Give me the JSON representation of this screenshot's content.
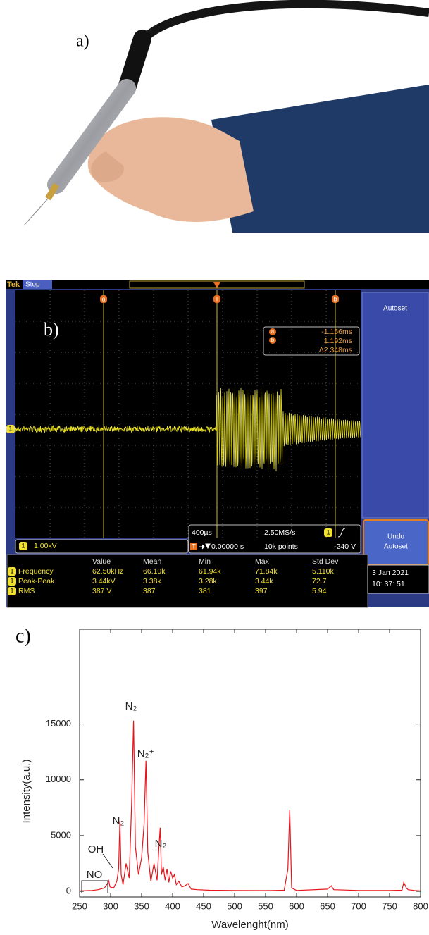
{
  "photo": {
    "label": "a)"
  },
  "oscilloscope": {
    "label": "b)",
    "brand": "Tek",
    "state": "Stop",
    "cursor_a": "a",
    "cursor_b": "b",
    "trigger": "T",
    "channel": "1",
    "readouts": [
      "-1.156ms",
      "1.192ms",
      "Δ2.348ms"
    ],
    "autoset": "Autoset",
    "undo_autoset": [
      "Undo",
      "Autoset"
    ],
    "scale": "1.00kV",
    "timebase": "400µs",
    "sample_rate": "2.50MS/s",
    "trigger_position": "0.00000 s",
    "record_length": "10k points",
    "trigger_level": "-240 V",
    "date": "3 Jan   2021",
    "time": "10: 37: 51",
    "table": {
      "header": [
        "Value",
        "Mean",
        "Min",
        "Max",
        "Std Dev"
      ],
      "rows": [
        [
          "Frequency",
          "62.50kHz",
          "66.10k",
          "61.94k",
          "71.84k",
          "5.110k"
        ],
        [
          "Peak-Peak",
          "3.44kV",
          "3.38k",
          "3.28k",
          "3.44k",
          "72.7"
        ],
        [
          "RMS",
          "387 V",
          "387",
          "381",
          "397",
          "5.94"
        ]
      ]
    }
  },
  "chart_data": {
    "type": "line",
    "label": "c)",
    "x_label": "Wavelenght(nm)",
    "y_label": "Intensity(a.u.)",
    "color": "#e8141c",
    "x": [
      250,
      260,
      270,
      280,
      290,
      295,
      297,
      299,
      305,
      310,
      313,
      315,
      317,
      320,
      325,
      330,
      334,
      337,
      340,
      345,
      350,
      354,
      357,
      360,
      365,
      370,
      375,
      378,
      380,
      382,
      385,
      388,
      391,
      394,
      397,
      400,
      403,
      406,
      410,
      415,
      420,
      425,
      430,
      440,
      460,
      500,
      550,
      580,
      586,
      589,
      592,
      600,
      650,
      656,
      660,
      700,
      750,
      770,
      773,
      777,
      780,
      790,
      800
    ],
    "values": [
      50,
      60,
      80,
      150,
      300,
      700,
      950,
      400,
      300,
      900,
      2000,
      6300,
      1500,
      600,
      2500,
      1200,
      8000,
      15300,
      4000,
      1500,
      3000,
      6000,
      11700,
      3500,
      900,
      2500,
      1000,
      4000,
      5700,
      1500,
      2200,
      1000,
      2000,
      800,
      1800,
      1200,
      1500,
      600,
      900,
      400,
      500,
      700,
      200,
      150,
      100,
      80,
      70,
      100,
      2000,
      7300,
      300,
      80,
      200,
      500,
      150,
      80,
      80,
      100,
      800,
      300,
      150,
      80,
      50
    ],
    "xlim": [
      250,
      800
    ],
    "ylim": [
      -500,
      23500
    ],
    "xticks": [
      250,
      300,
      350,
      400,
      450,
      500,
      550,
      600,
      650,
      700,
      750,
      800
    ],
    "yticks": [
      0,
      5000,
      10000,
      15000
    ],
    "annotations": [
      "N₂",
      "N₂⁺",
      "N₂",
      "N₂",
      "OH",
      "NO"
    ]
  }
}
